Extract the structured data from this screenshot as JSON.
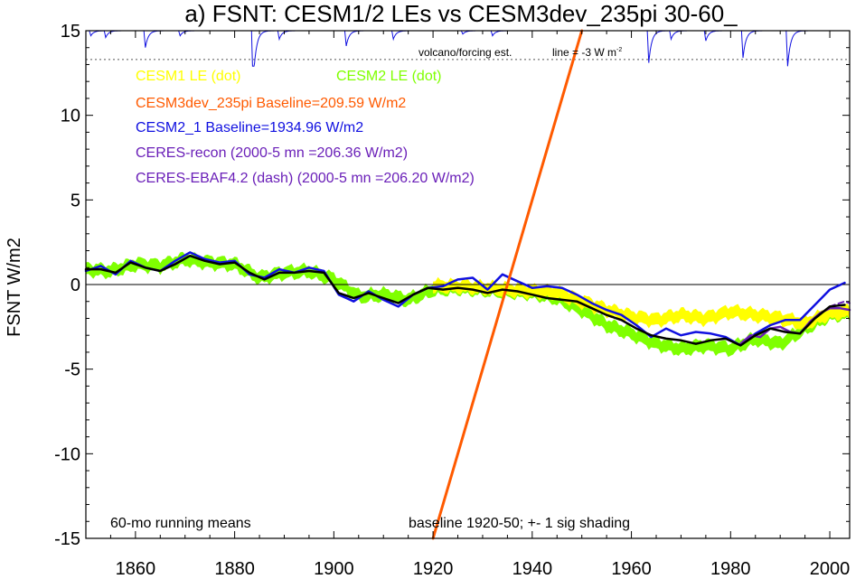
{
  "chart_data": {
    "type": "line",
    "title": "a) FSNT: CESM1/2 LEs vs CESM3dev_235pi 30-60_",
    "ylabel": "FSNT W/m2",
    "xlim": [
      1850,
      2004
    ],
    "ylim": [
      -15,
      15
    ],
    "x_ticks": [
      1860,
      1880,
      1900,
      1920,
      1940,
      1960,
      1980,
      2000
    ],
    "y_ticks": [
      15,
      10,
      5,
      0,
      -5,
      -10,
      -15
    ],
    "annotations": {
      "volcano": "volcano/forcing est.",
      "line_note": "line = -3 W m",
      "line_note_sup": "-2",
      "bottom_left": "60-mo running means",
      "bottom_center": "baseline 1920-50; +- 1 sig shading"
    },
    "legend": [
      {
        "text": "CESM1 LE (dot)",
        "color": "#ffff00"
      },
      {
        "text": "CESM2 LE (dot)",
        "color": "#7fff00"
      },
      {
        "text": "CESM3dev_235pi Baseline=209.59 W/m2",
        "color": "#ff5a00"
      },
      {
        "text": "CESM2_1 Baseline=1934.96 W/m2",
        "color": "#1010e0"
      },
      {
        "text": "CERES-recon (2000-5 mn =206.36 W/m2)",
        "color": "#6a1fb8"
      },
      {
        "text": "CERES-EBAF4.2 (dash) (2000-5 mn =206.20 W/m2)",
        "color": "#6a1fb8"
      }
    ],
    "reference_lines": {
      "zero": 0,
      "volcano_baseline": 13.3
    },
    "series": [
      {
        "name": "CESM2 LE (dot)",
        "color": "#7fff00",
        "style": "band",
        "x": [
          1850,
          1855,
          1860,
          1865,
          1870,
          1875,
          1880,
          1885,
          1890,
          1895,
          1900,
          1905,
          1910,
          1915,
          1920,
          1925,
          1930,
          1935,
          1940,
          1945,
          1950,
          1955,
          1960,
          1965,
          1970,
          1975,
          1980,
          1985,
          1990,
          1995,
          2000,
          2004
        ],
        "values": [
          0.9,
          0.8,
          1.2,
          1.1,
          1.5,
          1.3,
          1.2,
          0.4,
          0.7,
          0.8,
          0.3,
          -0.7,
          -0.6,
          -0.9,
          -0.3,
          -0.2,
          -0.3,
          -0.4,
          -0.5,
          -0.8,
          -1.5,
          -2.4,
          -2.9,
          -3.5,
          -3.8,
          -3.6,
          -3.8,
          -3.2,
          -3.5,
          -2.6,
          -1.8,
          -1.7
        ],
        "spread": 0.35
      },
      {
        "name": "CESM1 LE (dot)",
        "color": "#ffff00",
        "style": "band",
        "x": [
          1920,
          1925,
          1930,
          1935,
          1940,
          1945,
          1950,
          1955,
          1960,
          1965,
          1970,
          1975,
          1980,
          1985,
          1990,
          1995,
          2000,
          2004
        ],
        "values": [
          -0.1,
          -0.1,
          -0.2,
          -0.3,
          -0.4,
          -0.5,
          -1.0,
          -1.5,
          -1.9,
          -2.1,
          -1.8,
          -2.0,
          -1.6,
          -1.8,
          -2.0,
          -2.3,
          -1.7,
          -1.6
        ],
        "spread": 0.35
      },
      {
        "name": "CESM2_1 Baseline=1934.96 W/m2",
        "color": "#1010e0",
        "style": "solid",
        "width": 2.5,
        "x": [
          1850,
          1853,
          1856,
          1859,
          1862,
          1865,
          1868,
          1871,
          1874,
          1877,
          1880,
          1883,
          1886,
          1889,
          1892,
          1895,
          1898,
          1901,
          1904,
          1907,
          1910,
          1913,
          1916,
          1919,
          1922,
          1925,
          1928,
          1931,
          1934,
          1937,
          1940,
          1943,
          1946,
          1949,
          1952,
          1955,
          1958,
          1961,
          1964,
          1967,
          1970,
          1973,
          1976,
          1979,
          1982,
          1985,
          1988,
          1991,
          1994,
          1997,
          2000,
          2003
        ],
        "values": [
          0.8,
          1.1,
          0.6,
          1.4,
          1.0,
          0.8,
          1.4,
          1.9,
          1.5,
          1.3,
          1.4,
          0.6,
          0.4,
          0.9,
          0.7,
          1.0,
          0.8,
          -0.6,
          -1.0,
          -0.4,
          -0.9,
          -1.3,
          -0.6,
          -0.2,
          -0.1,
          0.3,
          0.4,
          -0.3,
          0.6,
          0.2,
          -0.2,
          -0.1,
          -0.2,
          -0.6,
          -1.1,
          -1.5,
          -1.8,
          -2.4,
          -3.1,
          -2.6,
          -3.0,
          -2.8,
          -2.9,
          -3.1,
          -3.6,
          -2.9,
          -2.4,
          -2.1,
          -2.1,
          -1.2,
          -0.3,
          0.1
        ],
        "spread": 0
      },
      {
        "name": "CERES-recon (2000-5 mn =206.36 W/m2)",
        "color": "#6a1fb8",
        "style": "solid",
        "width": 2.5,
        "x": [
          1982,
          1984,
          1986,
          1988,
          1990,
          1992,
          1994,
          1996,
          1998,
          2000,
          2002,
          2004
        ],
        "values": [
          -3.5,
          -3.0,
          -3.1,
          -2.6,
          -2.5,
          -2.8,
          -2.9,
          -2.2,
          -1.7,
          -1.4,
          -1.4,
          -1.5
        ],
        "spread": 0
      },
      {
        "name": "CERES-EBAF4.2 (dash) (2000-5 mn =206.20 W/m2)",
        "color": "#6a1fb8",
        "style": "dash",
        "width": 2,
        "x": [
          2000,
          2001,
          2002,
          2003,
          2004
        ],
        "values": [
          -1.3,
          -1.2,
          -1.1,
          -1.0,
          -1.1
        ],
        "spread": 0
      },
      {
        "name": "CESM3dev_235pi Baseline=209.59 W/m2",
        "color": "#ff5a00",
        "style": "solid",
        "width": 3,
        "x": [
          1920,
          1950
        ],
        "values": [
          -15,
          15
        ],
        "spread": 0
      },
      {
        "name": "CESM ensemble mean",
        "color": "#000000",
        "style": "solid",
        "width": 2.5,
        "x": [
          1850,
          1853,
          1856,
          1859,
          1862,
          1865,
          1868,
          1871,
          1874,
          1877,
          1880,
          1883,
          1886,
          1889,
          1892,
          1895,
          1898,
          1901,
          1904,
          1907,
          1910,
          1913,
          1916,
          1919,
          1922,
          1925,
          1928,
          1931,
          1934,
          1937,
          1940,
          1943,
          1946,
          1949,
          1952,
          1955,
          1958,
          1961,
          1964,
          1967,
          1970,
          1973,
          1976,
          1979,
          1982,
          1985,
          1988,
          1991,
          1994,
          1997,
          2000,
          2003
        ],
        "values": [
          0.9,
          0.9,
          0.7,
          1.3,
          1.0,
          0.8,
          1.2,
          1.7,
          1.4,
          1.2,
          1.3,
          0.7,
          0.3,
          0.7,
          0.7,
          0.8,
          0.7,
          -0.5,
          -0.8,
          -0.5,
          -0.8,
          -1.1,
          -0.6,
          -0.2,
          -0.3,
          -0.2,
          -0.3,
          -0.5,
          -0.3,
          -0.4,
          -0.6,
          -0.8,
          -0.9,
          -1.0,
          -1.4,
          -1.8,
          -2.1,
          -2.6,
          -3.0,
          -3.2,
          -3.3,
          -3.5,
          -3.3,
          -3.2,
          -3.6,
          -3.0,
          -2.6,
          -2.8,
          -2.9,
          -2.0,
          -1.3,
          -1.2
        ],
        "spread": 0
      }
    ],
    "volcano": {
      "color": "#1010e0",
      "dips": [
        {
          "year": 1851,
          "depth": 0.3
        },
        {
          "year": 1854,
          "depth": 0.4
        },
        {
          "year": 1862,
          "depth": 1.0
        },
        {
          "year": 1869,
          "depth": 0.3
        },
        {
          "year": 1883.7,
          "depth": 3.2
        },
        {
          "year": 1889,
          "depth": 0.5
        },
        {
          "year": 1902.5,
          "depth": 0.9
        },
        {
          "year": 1912,
          "depth": 0.5
        },
        {
          "year": 1926,
          "depth": 0.2
        },
        {
          "year": 1932,
          "depth": 0.3
        },
        {
          "year": 1963.5,
          "depth": 1.9
        },
        {
          "year": 1968,
          "depth": 0.5
        },
        {
          "year": 1975,
          "depth": 0.6
        },
        {
          "year": 1982.5,
          "depth": 1.6
        },
        {
          "year": 1991.5,
          "depth": 2.1
        }
      ]
    }
  }
}
